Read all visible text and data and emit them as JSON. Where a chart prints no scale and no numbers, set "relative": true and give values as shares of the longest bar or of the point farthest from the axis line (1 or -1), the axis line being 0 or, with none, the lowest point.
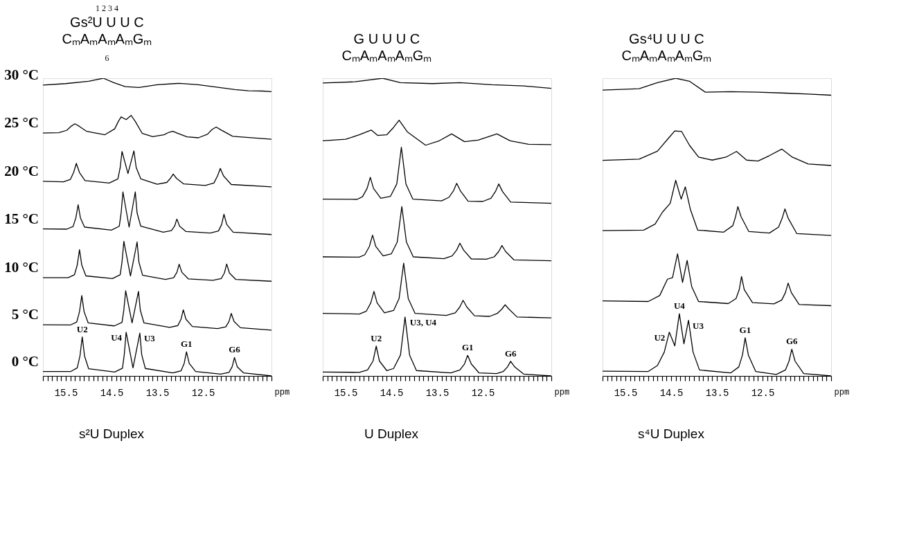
{
  "chart_data": [
    {
      "type": "line",
      "relative": true,
      "title": "s²U Duplex",
      "xlabel": "ppm",
      "xlim": [
        16.0,
        11.0
      ],
      "xticks": [
        {
          "value": 16.0,
          "label": null
        },
        {
          "value": 15.9,
          "label": null
        },
        {
          "value": 15.8,
          "label": null
        },
        {
          "value": 15.7,
          "label": null
        },
        {
          "value": 15.6,
          "label": null
        },
        15.5,
        {
          "value": 15.4,
          "label": null
        },
        {
          "value": 15.3,
          "label": null
        },
        {
          "value": 15.2,
          "label": null
        },
        {
          "value": 15.1,
          "label": null
        },
        {
          "value": 15.0,
          "label": null
        },
        {
          "value": 14.9,
          "label": null
        },
        {
          "value": 14.8,
          "label": null
        },
        {
          "value": 14.7,
          "label": null
        },
        {
          "value": 14.6,
          "label": null
        },
        14.5,
        {
          "value": 14.4,
          "label": null
        },
        {
          "value": 14.3,
          "label": null
        },
        {
          "value": 14.2,
          "label": null
        },
        {
          "value": 14.1,
          "label": null
        },
        {
          "value": 14.0,
          "label": null
        },
        {
          "value": 13.9,
          "label": null
        },
        {
          "value": 13.8,
          "label": null
        },
        {
          "value": 13.7,
          "label": null
        },
        {
          "value": 13.6,
          "label": null
        },
        13.5,
        {
          "value": 13.4,
          "label": null
        },
        {
          "value": 13.3,
          "label": null
        },
        {
          "value": 13.2,
          "label": null
        },
        {
          "value": 13.1,
          "label": null
        },
        {
          "value": 13.0,
          "label": null
        },
        {
          "value": 12.9,
          "label": null
        },
        {
          "value": 12.8,
          "label": null
        },
        {
          "value": 12.7,
          "label": null
        },
        {
          "value": 12.6,
          "label": null
        },
        12.5,
        {
          "value": 12.4,
          "label": null
        },
        {
          "value": 12.3,
          "label": null
        },
        {
          "value": 12.2,
          "label": null
        },
        {
          "value": 12.1,
          "label": null
        },
        {
          "value": 12.0,
          "label": null
        },
        {
          "value": 11.9,
          "label": null
        },
        {
          "value": 11.8,
          "label": null
        },
        {
          "value": 11.7,
          "label": null
        },
        {
          "value": 11.6,
          "label": null
        },
        {
          "value": 11.5,
          "label": null
        },
        {
          "value": 11.4,
          "label": null
        },
        {
          "value": 11.3,
          "label": null
        },
        {
          "value": 11.2,
          "label": null
        },
        {
          "value": 11.1,
          "label": null
        },
        {
          "value": 11.0,
          "label": null
        }
      ],
      "series": [
        {
          "name": "0 °C",
          "color": "#000000",
          "x": [
            16.0,
            15.39,
            15.25,
            15.19,
            15.14,
            15.09,
            15.0,
            14.43,
            14.26,
            14.22,
            14.18,
            14.03,
            13.88,
            13.84,
            13.76,
            13.16,
            12.98,
            12.91,
            12.86,
            12.8,
            12.66,
            12.11,
            11.93,
            11.86,
            11.81,
            11.75,
            11.61,
            11.0
          ],
          "values": [
            0.015,
            0.015,
            0.027,
            0.067,
            0.131,
            0.067,
            0.024,
            0.013,
            0.026,
            0.073,
            0.147,
            0.027,
            0.144,
            0.072,
            0.025,
            0.01,
            0.017,
            0.042,
            0.081,
            0.042,
            0.015,
            0.006,
            0.012,
            0.031,
            0.062,
            0.031,
            0.01,
            0
          ]
        },
        {
          "name": "5 °C",
          "color": "#000000",
          "x": [
            16.0,
            15.4,
            15.26,
            15.2,
            15.15,
            15.1,
            15.01,
            14.44,
            14.27,
            14.23,
            14.19,
            14.05,
            13.91,
            13.87,
            13.79,
            13.23,
            13.05,
            12.98,
            12.93,
            12.87,
            12.73,
            12.18,
            12.0,
            11.93,
            11.88,
            11.82,
            11.68,
            11.0
          ],
          "values": [
            0.172,
            0.171,
            0.181,
            0.216,
            0.27,
            0.216,
            0.178,
            0.168,
            0.18,
            0.222,
            0.286,
            0.178,
            0.284,
            0.221,
            0.178,
            0.163,
            0.169,
            0.19,
            0.222,
            0.19,
            0.166,
            0.159,
            0.165,
            0.183,
            0.21,
            0.183,
            0.162,
            0.154
          ]
        },
        {
          "name": "10 °C",
          "color": "#000000",
          "x": [
            16.0,
            15.45,
            15.31,
            15.25,
            15.2,
            15.15,
            15.06,
            14.48,
            14.31,
            14.27,
            14.23,
            14.085,
            13.94,
            13.9,
            13.82,
            13.32,
            13.14,
            13.07,
            13.02,
            12.96,
            12.82,
            12.28,
            12.1,
            12.03,
            11.98,
            11.92,
            11.78,
            11.0
          ],
          "values": [
            0.33,
            0.33,
            0.34,
            0.372,
            0.424,
            0.372,
            0.336,
            0.327,
            0.34,
            0.383,
            0.452,
            0.336,
            0.45,
            0.382,
            0.338,
            0.324,
            0.33,
            0.348,
            0.375,
            0.348,
            0.326,
            0.321,
            0.327,
            0.346,
            0.376,
            0.346,
            0.324,
            0.318
          ]
        },
        {
          "name": "15 °C",
          "color": "#000000",
          "x": [
            16.0,
            15.48,
            15.34,
            15.28,
            15.23,
            15.18,
            15.09,
            14.5,
            14.33,
            14.29,
            14.25,
            14.115,
            13.98,
            13.94,
            13.86,
            13.37,
            13.19,
            13.12,
            13.07,
            13.01,
            12.87,
            12.34,
            12.16,
            12.09,
            12.04,
            11.98,
            11.84,
            11.0
          ],
          "values": [
            0.494,
            0.493,
            0.502,
            0.531,
            0.575,
            0.531,
            0.5,
            0.49,
            0.503,
            0.547,
            0.618,
            0.5,
            0.618,
            0.547,
            0.503,
            0.483,
            0.488,
            0.503,
            0.527,
            0.503,
            0.485,
            0.48,
            0.487,
            0.509,
            0.543,
            0.509,
            0.483,
            0.475
          ]
        },
        {
          "name": "20 °C",
          "color": "#000000",
          "x": [
            16.0,
            15.55,
            15.4,
            15.33,
            15.27,
            15.2,
            15.08,
            14.55,
            14.36,
            14.31,
            14.27,
            14.14,
            14.01,
            13.96,
            13.86,
            13.5,
            13.29,
            13.21,
            13.15,
            13.08,
            12.92,
            12.45,
            12.26,
            12.18,
            12.12,
            12.05,
            11.88,
            11.0
          ],
          "values": [
            0.654,
            0.652,
            0.66,
            0.683,
            0.714,
            0.683,
            0.656,
            0.648,
            0.662,
            0.7,
            0.754,
            0.68,
            0.756,
            0.7,
            0.662,
            0.644,
            0.65,
            0.664,
            0.678,
            0.664,
            0.645,
            0.64,
            0.648,
            0.672,
            0.697,
            0.672,
            0.643,
            0.635
          ]
        },
        {
          "name": "25 °C",
          "color": "#000000",
          "x": [
            16.0,
            15.65,
            15.48,
            15.39,
            15.3,
            15.2,
            15.05,
            14.65,
            14.43,
            14.35,
            14.29,
            14.18,
            14.07,
            13.98,
            13.83,
            13.6,
            13.35,
            13.25,
            13.16,
            13.05,
            12.85,
            12.6,
            12.4,
            12.3,
            12.21,
            12.1,
            11.85,
            11.0
          ],
          "values": [
            0.816,
            0.817,
            0.825,
            0.838,
            0.847,
            0.838,
            0.822,
            0.81,
            0.83,
            0.855,
            0.87,
            0.861,
            0.875,
            0.855,
            0.815,
            0.804,
            0.81,
            0.818,
            0.822,
            0.815,
            0.803,
            0.8,
            0.812,
            0.828,
            0.836,
            0.826,
            0.805,
            0.795
          ]
        },
        {
          "name": "30 °C",
          "color": "#000000",
          "x": [
            16.0,
            15.5,
            15.0,
            14.68,
            14.45,
            14.2,
            13.9,
            13.5,
            13.02,
            12.6,
            12.2,
            11.8,
            11.5,
            11.2,
            11.0
          ],
          "values": [
            0.977,
            0.982,
            0.99,
            1.0,
            0.985,
            0.972,
            0.969,
            0.978,
            0.983,
            0.978,
            0.97,
            0.962,
            0.958,
            0.957,
            0.955
          ]
        }
      ],
      "annotations": [
        "1    2    3    4",
        "Gs²U U U C",
        "CₘAₘAₘAₘGₘ",
        "6",
        {
          "text": "U2",
          "x": 15.14,
          "y": 0.131
        },
        {
          "text": "U4",
          "x": 14.18,
          "y": 0.147
        },
        {
          "text": "U3",
          "x": 13.88,
          "y": 0.144
        },
        {
          "text": "G1",
          "x": 12.86,
          "y": 0.081
        },
        {
          "text": "G6",
          "x": 11.81,
          "y": 0.062
        }
      ]
    },
    {
      "type": "line",
      "relative": true,
      "title": "U Duplex",
      "xlabel": "ppm",
      "xlim": [
        16.0,
        11.0
      ],
      "xticks": [
        {
          "value": 16.0,
          "label": null
        },
        {
          "value": 15.9,
          "label": null
        },
        {
          "value": 15.8,
          "label": null
        },
        {
          "value": 15.7,
          "label": null
        },
        {
          "value": 15.6,
          "label": null
        },
        15.5,
        {
          "value": 15.4,
          "label": null
        },
        {
          "value": 15.3,
          "label": null
        },
        {
          "value": 15.2,
          "label": null
        },
        {
          "value": 15.1,
          "label": null
        },
        {
          "value": 15.0,
          "label": null
        },
        {
          "value": 14.9,
          "label": null
        },
        {
          "value": 14.8,
          "label": null
        },
        {
          "value": 14.7,
          "label": null
        },
        {
          "value": 14.6,
          "label": null
        },
        14.5,
        {
          "value": 14.4,
          "label": null
        },
        {
          "value": 14.3,
          "label": null
        },
        {
          "value": 14.2,
          "label": null
        },
        {
          "value": 14.1,
          "label": null
        },
        {
          "value": 14.0,
          "label": null
        },
        {
          "value": 13.9,
          "label": null
        },
        {
          "value": 13.8,
          "label": null
        },
        {
          "value": 13.7,
          "label": null
        },
        {
          "value": 13.6,
          "label": null
        },
        13.5,
        {
          "value": 13.4,
          "label": null
        },
        {
          "value": 13.3,
          "label": null
        },
        {
          "value": 13.2,
          "label": null
        },
        {
          "value": 13.1,
          "label": null
        },
        {
          "value": 13.0,
          "label": null
        },
        {
          "value": 12.9,
          "label": null
        },
        {
          "value": 12.8,
          "label": null
        },
        {
          "value": 12.7,
          "label": null
        },
        {
          "value": 12.6,
          "label": null
        },
        12.5,
        {
          "value": 12.4,
          "label": null
        },
        {
          "value": 12.3,
          "label": null
        },
        {
          "value": 12.2,
          "label": null
        },
        {
          "value": 12.1,
          "label": null
        },
        {
          "value": 12.0,
          "label": null
        },
        {
          "value": 11.9,
          "label": null
        },
        {
          "value": 11.8,
          "label": null
        },
        {
          "value": 11.7,
          "label": null
        },
        {
          "value": 11.6,
          "label": null
        },
        {
          "value": 11.5,
          "label": null
        },
        {
          "value": 11.4,
          "label": null
        },
        {
          "value": 11.3,
          "label": null
        },
        {
          "value": 11.2,
          "label": null
        },
        {
          "value": 11.1,
          "label": null
        },
        {
          "value": 11.0,
          "label": null
        }
      ],
      "series": [
        {
          "color": "#000000",
          "x": [
            16.0,
            15.2,
            15.02,
            14.9,
            14.83,
            14.76,
            14.6,
            14.45,
            14.3,
            14.2,
            14.1,
            13.95,
            13.2,
            13.0,
            12.9,
            12.83,
            12.75,
            12.58,
            12.2,
            12.05,
            11.96,
            11.89,
            11.8,
            11.6,
            11.0
          ],
          "values": [
            0.013,
            0.012,
            0.02,
            0.05,
            0.1,
            0.05,
            0.018,
            0.025,
            0.07,
            0.198,
            0.07,
            0.018,
            0.01,
            0.02,
            0.04,
            0.069,
            0.04,
            0.01,
            0.008,
            0.015,
            0.03,
            0.049,
            0.03,
            0.006,
            0
          ]
        },
        {
          "color": "#000000",
          "x": [
            16.0,
            15.2,
            15.05,
            14.95,
            14.88,
            14.81,
            14.65,
            14.45,
            14.33,
            14.23,
            14.13,
            13.98,
            13.3,
            13.1,
            13.0,
            12.93,
            12.85,
            12.68,
            12.35,
            12.18,
            12.08,
            12.01,
            11.93,
            11.75,
            11.0
          ],
          "values": [
            0.21,
            0.208,
            0.217,
            0.245,
            0.284,
            0.245,
            0.212,
            0.22,
            0.26,
            0.379,
            0.26,
            0.21,
            0.203,
            0.212,
            0.232,
            0.254,
            0.232,
            0.202,
            0.2,
            0.21,
            0.225,
            0.239,
            0.225,
            0.198,
            0.195
          ]
        },
        {
          "color": "#000000",
          "x": [
            16.0,
            15.2,
            15.08,
            14.98,
            14.91,
            14.84,
            14.68,
            14.5,
            14.37,
            14.27,
            14.17,
            14.02,
            13.35,
            13.17,
            13.07,
            13.0,
            12.92,
            12.75,
            12.42,
            12.25,
            12.15,
            12.08,
            12.0,
            11.82,
            11.0
          ],
          "values": [
            0.4,
            0.399,
            0.407,
            0.435,
            0.473,
            0.435,
            0.403,
            0.41,
            0.45,
            0.569,
            0.45,
            0.4,
            0.394,
            0.403,
            0.423,
            0.446,
            0.423,
            0.393,
            0.392,
            0.4,
            0.418,
            0.438,
            0.418,
            0.39,
            0.387
          ]
        },
        {
          "color": "#000000",
          "x": [
            16.0,
            15.25,
            15.13,
            15.03,
            14.96,
            14.89,
            14.73,
            14.52,
            14.38,
            14.28,
            14.18,
            14.03,
            13.4,
            13.24,
            13.14,
            13.07,
            12.99,
            12.82,
            12.5,
            12.32,
            12.22,
            12.15,
            12.07,
            11.89,
            11.0
          ],
          "values": [
            0.594,
            0.593,
            0.602,
            0.63,
            0.667,
            0.63,
            0.597,
            0.603,
            0.645,
            0.768,
            0.645,
            0.594,
            0.588,
            0.6,
            0.622,
            0.647,
            0.622,
            0.587,
            0.586,
            0.597,
            0.62,
            0.645,
            0.62,
            0.584,
            0.58
          ]
        },
        {
          "color": "#000000",
          "x": [
            16.0,
            15.5,
            15.2,
            14.94,
            14.8,
            14.6,
            14.45,
            14.33,
            14.15,
            13.75,
            13.45,
            13.18,
            12.9,
            12.6,
            12.19,
            11.9,
            11.5,
            11.0
          ],
          "values": [
            0.79,
            0.795,
            0.81,
            0.826,
            0.808,
            0.81,
            0.835,
            0.859,
            0.82,
            0.775,
            0.79,
            0.813,
            0.787,
            0.792,
            0.813,
            0.79,
            0.778,
            0.777
          ]
        },
        {
          "color": "#000000",
          "x": [
            16.0,
            15.3,
            14.69,
            14.3,
            13.6,
            13.0,
            12.3,
            11.6,
            11.0
          ],
          "values": [
            0.984,
            0.988,
            1.0,
            0.985,
            0.982,
            0.985,
            0.978,
            0.974,
            0.966
          ]
        }
      ],
      "annotations": [
        "G U U U C",
        "CₘAₘAₘAₘGₘ",
        {
          "text": "U2",
          "x": 14.83,
          "y": 0.1
        },
        {
          "text": "U3, U4",
          "x": 14.2,
          "y": 0.198
        },
        {
          "text": "G1",
          "x": 12.83,
          "y": 0.069
        },
        {
          "text": "G6",
          "x": 11.89,
          "y": 0.049
        }
      ]
    },
    {
      "type": "line",
      "relative": true,
      "title": "s⁴U Duplex",
      "xlabel": "ppm",
      "xlim": [
        16.0,
        11.0
      ],
      "xticks": [
        {
          "value": 16.0,
          "label": null
        },
        {
          "value": 15.9,
          "label": null
        },
        {
          "value": 15.8,
          "label": null
        },
        {
          "value": 15.7,
          "label": null
        },
        {
          "value": 15.6,
          "label": null
        },
        15.5,
        {
          "value": 15.4,
          "label": null
        },
        {
          "value": 15.3,
          "label": null
        },
        {
          "value": 15.2,
          "label": null
        },
        {
          "value": 15.1,
          "label": null
        },
        {
          "value": 15.0,
          "label": null
        },
        {
          "value": 14.9,
          "label": null
        },
        {
          "value": 14.8,
          "label": null
        },
        {
          "value": 14.7,
          "label": null
        },
        {
          "value": 14.6,
          "label": null
        },
        14.5,
        {
          "value": 14.4,
          "label": null
        },
        {
          "value": 14.3,
          "label": null
        },
        {
          "value": 14.2,
          "label": null
        },
        {
          "value": 14.1,
          "label": null
        },
        {
          "value": 14.0,
          "label": null
        },
        {
          "value": 13.9,
          "label": null
        },
        {
          "value": 13.8,
          "label": null
        },
        {
          "value": 13.7,
          "label": null
        },
        {
          "value": 13.6,
          "label": null
        },
        13.5,
        {
          "value": 13.4,
          "label": null
        },
        {
          "value": 13.3,
          "label": null
        },
        {
          "value": 13.2,
          "label": null
        },
        {
          "value": 13.1,
          "label": null
        },
        {
          "value": 13.0,
          "label": null
        },
        {
          "value": 12.9,
          "label": null
        },
        {
          "value": 12.8,
          "label": null
        },
        {
          "value": 12.7,
          "label": null
        },
        {
          "value": 12.6,
          "label": null
        },
        12.5,
        {
          "value": 12.4,
          "label": null
        },
        {
          "value": 12.3,
          "label": null
        },
        {
          "value": 12.2,
          "label": null
        },
        {
          "value": 12.1,
          "label": null
        },
        {
          "value": 12.0,
          "label": null
        },
        {
          "value": 11.9,
          "label": null
        },
        {
          "value": 11.8,
          "label": null
        },
        {
          "value": 11.7,
          "label": null
        },
        {
          "value": 11.6,
          "label": null
        },
        {
          "value": 11.5,
          "label": null
        },
        {
          "value": 11.4,
          "label": null
        },
        {
          "value": 11.3,
          "label": null
        },
        {
          "value": 11.2,
          "label": null
        },
        {
          "value": 11.1,
          "label": null
        },
        {
          "value": 11.0,
          "label": null
        }
      ],
      "series": [
        {
          "color": "#000000",
          "x": [
            16.0,
            15.0,
            14.8,
            14.65,
            14.54,
            14.42,
            14.32,
            14.22,
            14.12,
            14.02,
            13.88,
            13.2,
            13.02,
            12.94,
            12.88,
            12.81,
            12.65,
            12.2,
            12.0,
            11.92,
            11.86,
            11.79,
            11.6,
            11.0
          ],
          "values": [
            0.016,
            0.015,
            0.035,
            0.08,
            0.147,
            0.101,
            0.209,
            0.108,
            0.187,
            0.08,
            0.02,
            0.01,
            0.03,
            0.07,
            0.128,
            0.07,
            0.015,
            0.005,
            0.02,
            0.05,
            0.09,
            0.05,
            0.008,
            0
          ]
        },
        {
          "color": "#000000",
          "x": [
            16.0,
            15.0,
            14.75,
            14.58,
            14.47,
            14.36,
            14.25,
            14.15,
            14.05,
            13.9,
            13.25,
            13.08,
            13.01,
            12.96,
            12.9,
            12.72,
            12.25,
            12.08,
            12.0,
            11.94,
            11.87,
            11.7,
            11.0
          ],
          "values": [
            0.252,
            0.25,
            0.27,
            0.325,
            0.33,
            0.41,
            0.314,
            0.388,
            0.3,
            0.25,
            0.243,
            0.26,
            0.29,
            0.334,
            0.29,
            0.246,
            0.242,
            0.255,
            0.28,
            0.312,
            0.28,
            0.24,
            0.236
          ]
        },
        {
          "color": "#000000",
          "x": [
            16.0,
            15.1,
            14.85,
            14.69,
            14.52,
            14.4,
            14.28,
            14.19,
            14.08,
            13.92,
            13.35,
            13.15,
            13.09,
            13.04,
            12.97,
            12.8,
            12.35,
            12.15,
            12.07,
            12.01,
            11.94,
            11.75,
            11.0
          ],
          "values": [
            0.488,
            0.49,
            0.51,
            0.55,
            0.58,
            0.657,
            0.594,
            0.635,
            0.56,
            0.49,
            0.483,
            0.505,
            0.535,
            0.569,
            0.535,
            0.485,
            0.48,
            0.5,
            0.53,
            0.561,
            0.53,
            0.478,
            0.472
          ]
        },
        {
          "color": "#000000",
          "x": [
            16.0,
            15.2,
            14.8,
            14.55,
            14.42,
            14.27,
            14.1,
            13.9,
            13.6,
            13.3,
            13.07,
            12.85,
            12.6,
            12.35,
            12.08,
            11.85,
            11.5,
            11.0
          ],
          "values": [
            0.724,
            0.728,
            0.755,
            0.8,
            0.823,
            0.821,
            0.775,
            0.735,
            0.725,
            0.735,
            0.754,
            0.725,
            0.722,
            0.74,
            0.762,
            0.735,
            0.712,
            0.707
          ]
        },
        {
          "color": "#000000",
          "x": [
            16.0,
            15.2,
            14.8,
            14.4,
            14.1,
            13.75,
            13.2,
            12.6,
            12.0,
            11.5,
            11.0
          ],
          "values": [
            0.96,
            0.965,
            0.985,
            1.0,
            0.99,
            0.953,
            0.955,
            0.953,
            0.95,
            0.947,
            0.943
          ]
        }
      ],
      "annotations": [
        "Gs⁴U U U C",
        "CₘAₘAₘAₘGₘ",
        {
          "text": "U2",
          "x": 14.54,
          "y": 0.147
        },
        {
          "text": "U4",
          "x": 14.32,
          "y": 0.209
        },
        {
          "text": "U3",
          "x": 14.12,
          "y": 0.187
        },
        {
          "text": "G1",
          "x": 12.88,
          "y": 0.128
        },
        {
          "text": "G6",
          "x": 11.86,
          "y": 0.09
        }
      ]
    }
  ]
}
